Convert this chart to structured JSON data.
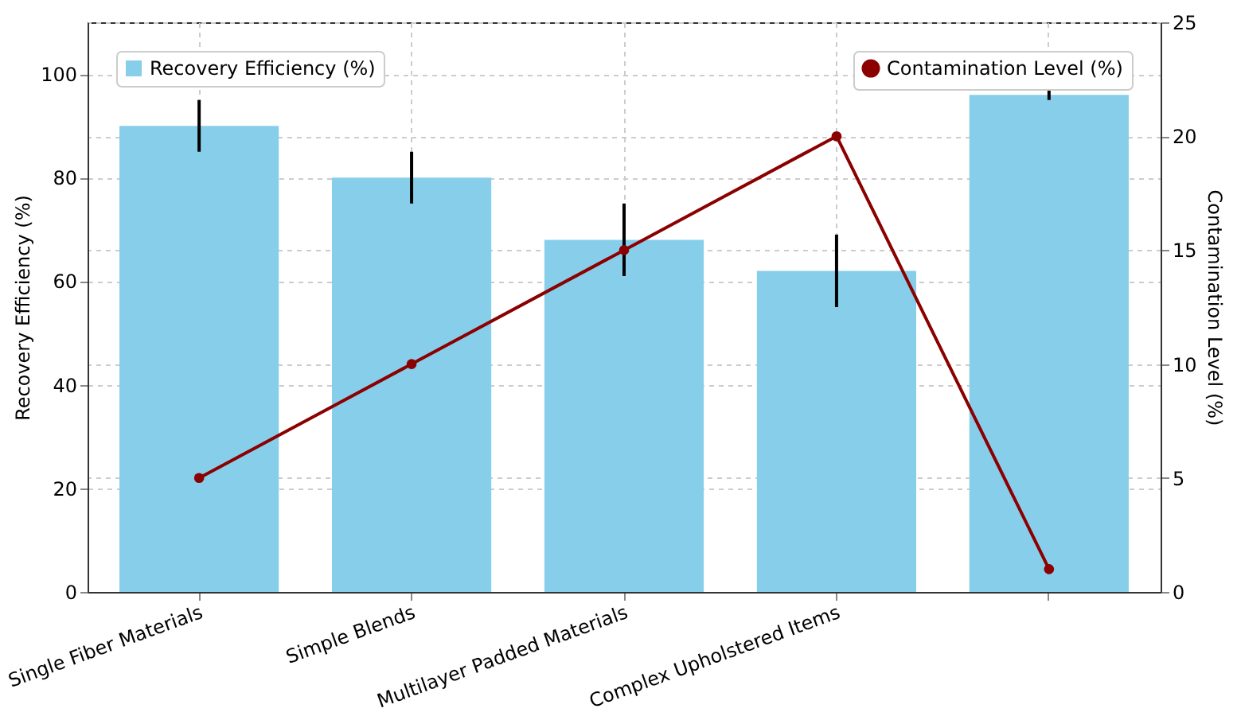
{
  "chart_data": {
    "type": "bar",
    "categories": [
      "Single Fiber Materials",
      "Simple Blends",
      "Multilayer Padded Materials",
      "Complex Upholstered Items",
      null
    ],
    "series": [
      {
        "name": "Recovery Efficiency (%)",
        "color": "#87ceeb",
        "values": [
          90,
          80,
          68,
          62,
          96
        ],
        "errors": [
          5,
          5,
          7,
          7,
          1
        ]
      },
      {
        "name": "Contamination Level (%)",
        "type": "line",
        "axis": "y2",
        "color": "#8b0000",
        "values": [
          5,
          10,
          15,
          20,
          1
        ]
      }
    ],
    "ylabel": "Recovery Efficiency (%)",
    "y2label": "Contamination Level (%)",
    "ylim": [
      0,
      110
    ],
    "yticks": [
      0,
      20,
      40,
      60,
      80,
      100
    ],
    "y2lim": [
      0,
      25
    ],
    "y2ticks": [
      0,
      5,
      10,
      15,
      20,
      25
    ],
    "grid": true,
    "legend": "top",
    "marker": "circle",
    "line_style": "solid"
  }
}
